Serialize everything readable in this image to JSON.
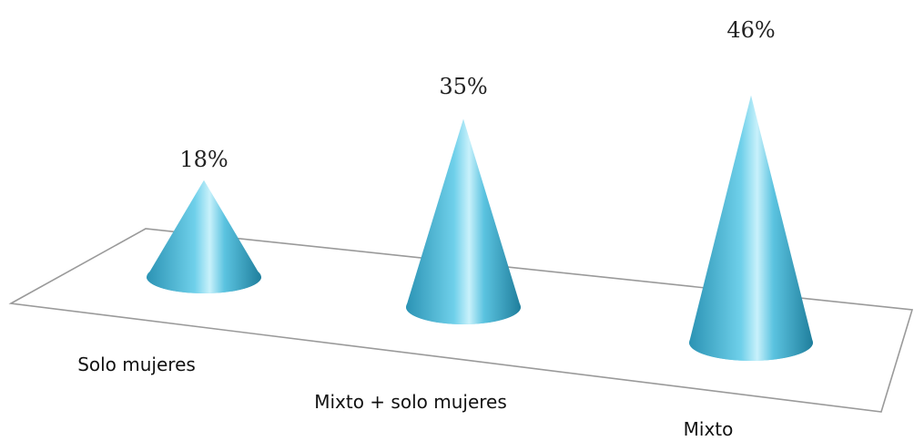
{
  "chart_data": {
    "type": "bar",
    "shape": "cone",
    "projection": "3d",
    "title": "",
    "xlabel": "",
    "ylabel": "",
    "categories": [
      "Solo mujeres",
      "Mixto + solo mujeres",
      "Mixto"
    ],
    "values": [
      18,
      35,
      46
    ],
    "value_labels": [
      "18%",
      "35%",
      "46%"
    ],
    "unit": "%",
    "legend": "none",
    "grid": false,
    "colors": {
      "cone_light": "#c8f1fb",
      "cone_mid": "#5bc3e0",
      "cone_dark": "#1f7e9c",
      "floor_stroke": "#9a9a9a"
    }
  }
}
